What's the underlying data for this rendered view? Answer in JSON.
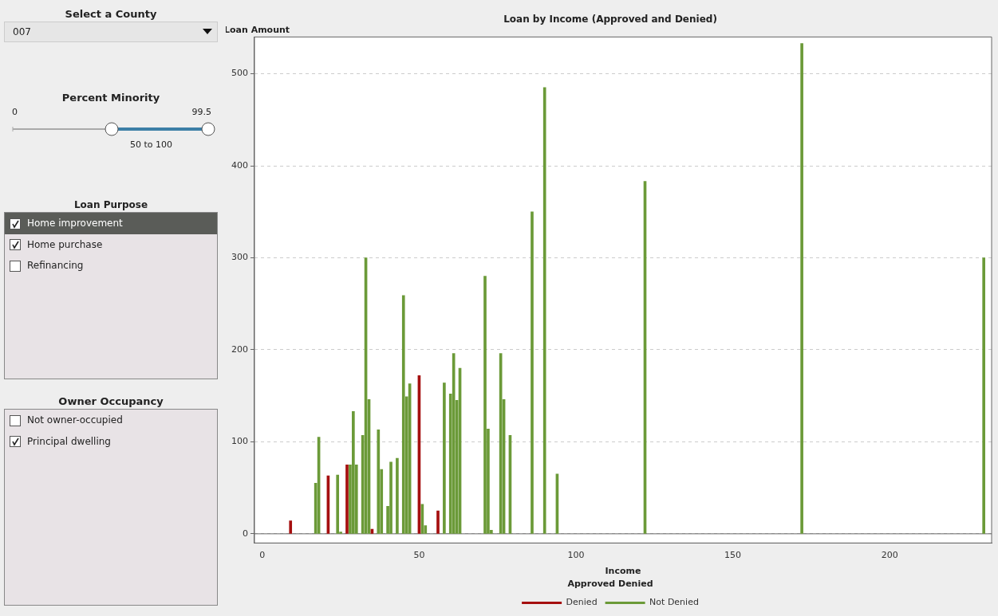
{
  "chart_data": [
    {
      "type": "bar",
      "title": "Loan by Income (Approved and Denied)",
      "xlabel": "Income",
      "ylabel": "Loan Amount",
      "legend_title": "Approved Denied",
      "legend": "bottom",
      "grid": "y",
      "xlim": [
        -2.5,
        232.5
      ],
      "xticks": [
        0,
        50,
        100,
        150,
        200
      ],
      "ylim": [
        -10,
        540
      ],
      "yticks": [
        0,
        100,
        200,
        300,
        400,
        500
      ],
      "series": [
        {
          "name": "Denied",
          "color": "#a50f0f",
          "x": [
            9,
            21,
            27,
            35,
            50,
            56
          ],
          "values": [
            14,
            63,
            75,
            5,
            172,
            25
          ]
        },
        {
          "name": "Not Denied",
          "color": "#6b9a38",
          "x": [
            17,
            18,
            24,
            25,
            28,
            29,
            30,
            32,
            33,
            34,
            37,
            38,
            40,
            41,
            43,
            45,
            46,
            47,
            51,
            52,
            58,
            60,
            61,
            62,
            63,
            71,
            72,
            73,
            76,
            77,
            79,
            86,
            90,
            94,
            122,
            172,
            230
          ],
          "values": [
            55,
            105,
            64,
            2,
            75,
            133,
            75,
            107,
            300,
            146,
            113,
            70,
            30,
            78,
            82,
            259,
            149,
            163,
            32,
            9,
            164,
            152,
            196,
            145,
            180,
            280,
            114,
            4,
            196,
            146,
            107,
            350,
            485,
            65,
            383,
            533,
            300
          ]
        }
      ]
    },
    {
      "type": "other",
      "annotations": [
        "Select a County",
        "007",
        "Percent Minority",
        "0",
        "99.5",
        "50 to 100",
        "Loan Purpose",
        "Home improvement",
        "Home purchase",
        "Refinancing",
        "Owner Occupancy",
        "Not owner-occupied",
        "Principal dwelling"
      ]
    }
  ]
}
